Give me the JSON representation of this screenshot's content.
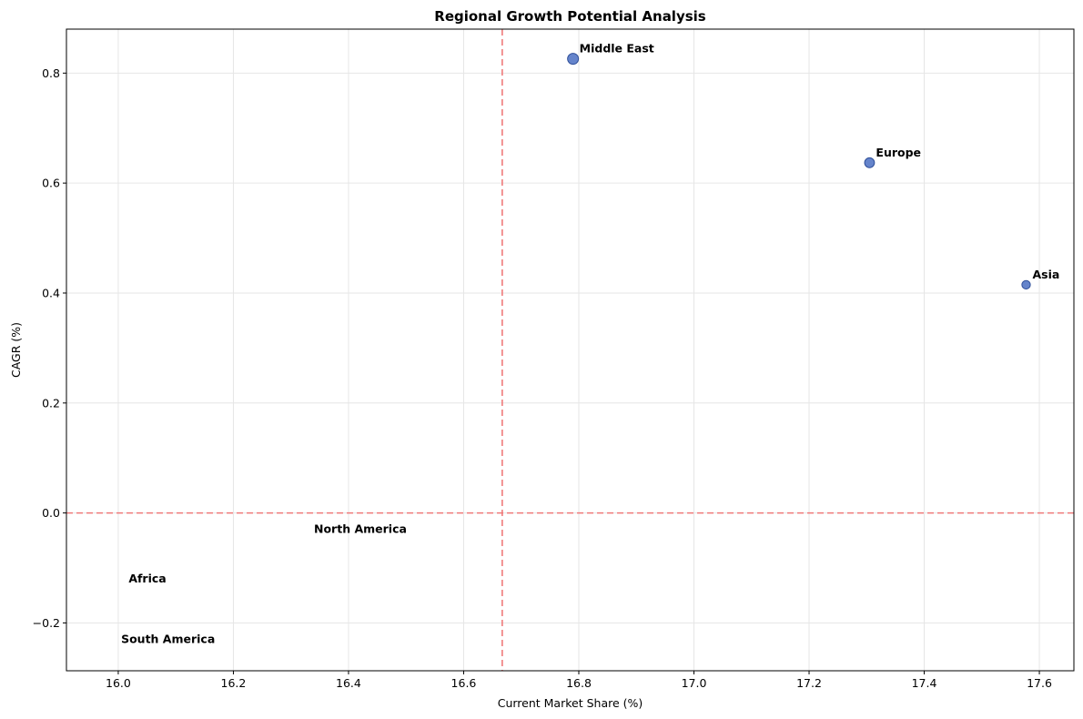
{
  "chart_data": {
    "type": "scatter",
    "title": "Regional Growth Potential Analysis",
    "xlabel": "Current Market Share (%)",
    "ylabel": "CAGR (%)",
    "xlim": [
      15.91,
      17.66
    ],
    "ylim": [
      -0.287,
      0.88
    ],
    "xticks": [
      16.0,
      16.2,
      16.4,
      16.6,
      16.8,
      17.0,
      17.2,
      17.4,
      17.6
    ],
    "xtick_labels": [
      "16.0",
      "16.2",
      "16.4",
      "16.6",
      "16.8",
      "17.0",
      "17.2",
      "17.4",
      "17.6"
    ],
    "yticks": [
      -0.2,
      0.0,
      0.2,
      0.4,
      0.6,
      0.8
    ],
    "ytick_labels": [
      "−0.2",
      "0.0",
      "0.2",
      "0.4",
      "0.6",
      "0.8"
    ],
    "grid": true,
    "reference_lines": {
      "x": 16.667,
      "y": 0.0,
      "color": "#f07a7a",
      "style": "dashed"
    },
    "marker_color": "#4a6fc2",
    "marker_edge": "#2f4f99",
    "points": [
      {
        "label": "Middle East",
        "x": 16.79,
        "y": 0.826,
        "size": 1.0
      },
      {
        "label": "Europe",
        "x": 17.305,
        "y": 0.637,
        "size": 0.8
      },
      {
        "label": "Asia",
        "x": 17.577,
        "y": 0.415,
        "size": 0.55
      },
      {
        "label": "North America",
        "x": 16.34,
        "y": -0.015,
        "size": 0
      },
      {
        "label": "Africa",
        "x": 16.018,
        "y": -0.105,
        "size": 0
      },
      {
        "label": "South America",
        "x": 16.005,
        "y": -0.215,
        "size": 0
      }
    ]
  }
}
